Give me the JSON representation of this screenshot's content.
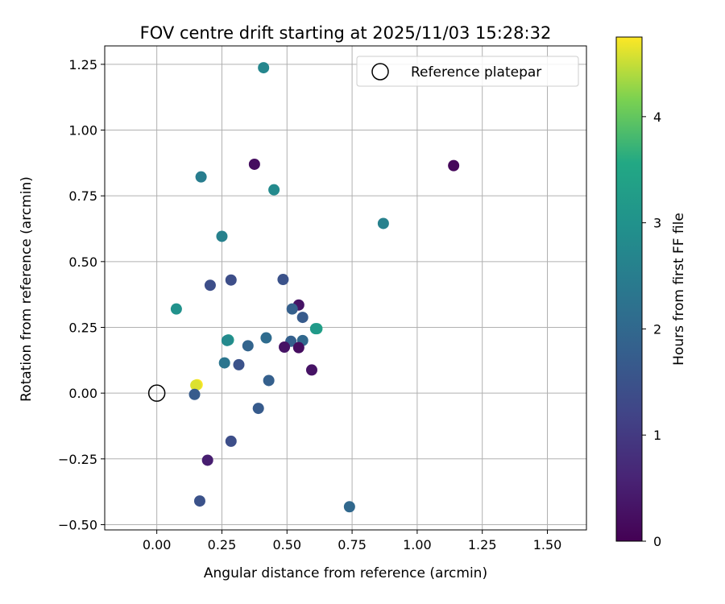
{
  "chart_data": {
    "type": "scatter",
    "title": "FOV centre drift starting at 2025/11/03 15:28:32",
    "xlabel": "Angular distance from reference (arcmin)",
    "ylabel": "Rotation from reference (arcmin)",
    "xlim": [
      -0.2,
      1.65
    ],
    "ylim": [
      -0.52,
      1.32
    ],
    "x_ticks": [
      0.0,
      0.25,
      0.5,
      0.75,
      1.0,
      1.25,
      1.5
    ],
    "x_tick_labels": [
      "0.00",
      "0.25",
      "0.50",
      "0.75",
      "1.00",
      "1.25",
      "1.50"
    ],
    "y_ticks": [
      -0.5,
      -0.25,
      0.0,
      0.25,
      0.5,
      0.75,
      1.0,
      1.25
    ],
    "y_tick_labels": [
      "−0.50",
      "−0.25",
      "0.00",
      "0.25",
      "0.50",
      "0.75",
      "1.00",
      "1.25"
    ],
    "grid": true,
    "legend": {
      "position": "top-right",
      "label": "Reference platepar",
      "marker": "open-circle"
    },
    "reference_point": {
      "x": 0.0,
      "y": 0.0
    },
    "colorbar": {
      "label": "Hours from first FF file",
      "range": [
        0,
        4.75
      ],
      "ticks": [
        0,
        1,
        2,
        3,
        4
      ],
      "tick_labels": [
        "0",
        "1",
        "2",
        "3",
        "4"
      ],
      "colormap": "viridis"
    },
    "points": [
      {
        "x": 0.41,
        "y": 1.237,
        "c": 2.7
      },
      {
        "x": 0.375,
        "y": 0.87,
        "c": 0.2
      },
      {
        "x": 1.14,
        "y": 0.865,
        "c": 0.1
      },
      {
        "x": 0.17,
        "y": 0.822,
        "c": 2.5
      },
      {
        "x": 0.45,
        "y": 0.773,
        "c": 2.8
      },
      {
        "x": 0.87,
        "y": 0.645,
        "c": 2.6
      },
      {
        "x": 0.25,
        "y": 0.596,
        "c": 2.6
      },
      {
        "x": 0.485,
        "y": 0.432,
        "c": 1.5
      },
      {
        "x": 0.285,
        "y": 0.43,
        "c": 1.4
      },
      {
        "x": 0.205,
        "y": 0.41,
        "c": 1.4
      },
      {
        "x": 0.545,
        "y": 0.335,
        "c": 0.3
      },
      {
        "x": 0.52,
        "y": 0.32,
        "c": 1.8
      },
      {
        "x": 0.075,
        "y": 0.32,
        "c": 3.0
      },
      {
        "x": 0.56,
        "y": 0.288,
        "c": 1.7
      },
      {
        "x": 0.615,
        "y": 0.245,
        "c": 3.4
      },
      {
        "x": 0.61,
        "y": 0.245,
        "c": 3.2
      },
      {
        "x": 0.42,
        "y": 0.21,
        "c": 2.1
      },
      {
        "x": 0.275,
        "y": 0.202,
        "c": 3.1
      },
      {
        "x": 0.27,
        "y": 0.2,
        "c": 2.8
      },
      {
        "x": 0.515,
        "y": 0.197,
        "c": 1.8
      },
      {
        "x": 0.56,
        "y": 0.2,
        "c": 2.0
      },
      {
        "x": 0.35,
        "y": 0.18,
        "c": 1.9
      },
      {
        "x": 0.49,
        "y": 0.175,
        "c": 0.3
      },
      {
        "x": 0.545,
        "y": 0.173,
        "c": 0.2
      },
      {
        "x": 0.26,
        "y": 0.115,
        "c": 2.3
      },
      {
        "x": 0.315,
        "y": 0.108,
        "c": 1.5
      },
      {
        "x": 0.595,
        "y": 0.088,
        "c": 0.3
      },
      {
        "x": 0.43,
        "y": 0.048,
        "c": 1.8
      },
      {
        "x": 0.155,
        "y": 0.032,
        "c": 4.75
      },
      {
        "x": 0.15,
        "y": 0.03,
        "c": 4.6
      },
      {
        "x": 0.145,
        "y": -0.005,
        "c": 1.7
      },
      {
        "x": 0.39,
        "y": -0.058,
        "c": 1.7
      },
      {
        "x": 0.285,
        "y": -0.183,
        "c": 1.4
      },
      {
        "x": 0.195,
        "y": -0.255,
        "c": 0.5
      },
      {
        "x": 0.165,
        "y": -0.41,
        "c": 1.5
      },
      {
        "x": 0.74,
        "y": -0.432,
        "c": 2.0
      }
    ]
  }
}
